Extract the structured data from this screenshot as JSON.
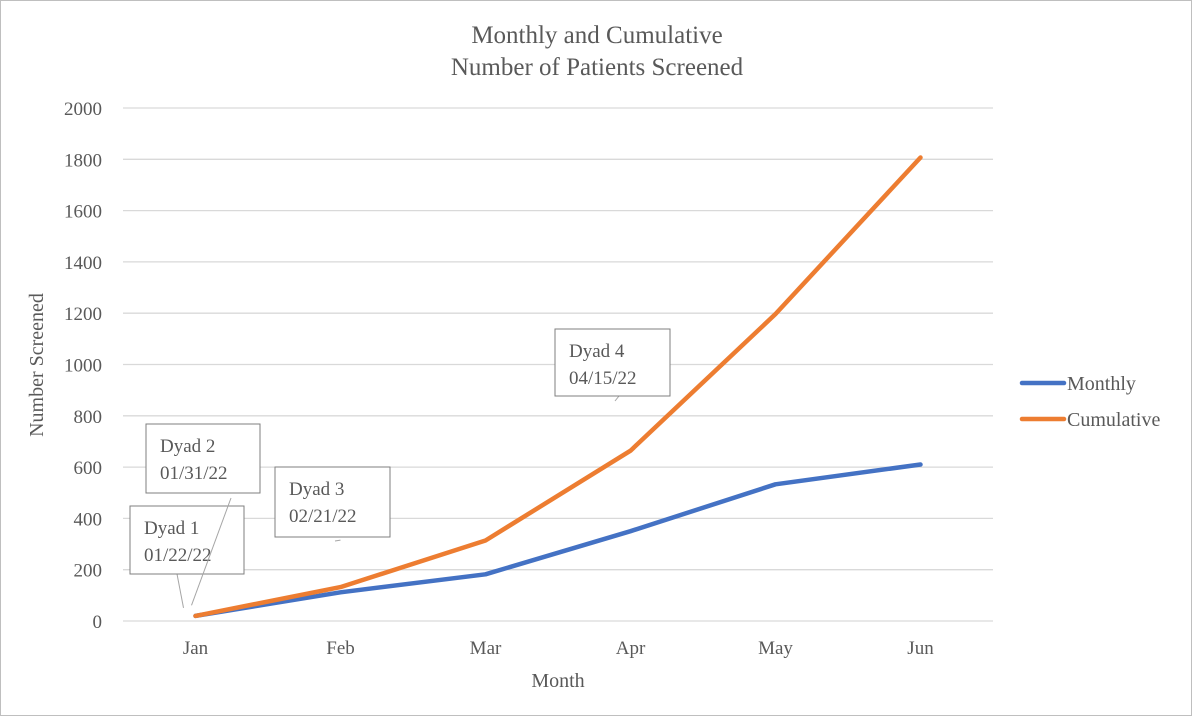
{
  "chart_data": {
    "type": "line",
    "title": [
      "Monthly and Cumulative",
      "Number of Patients Screened"
    ],
    "xlabel": "Month",
    "ylabel": "Number Screened",
    "categories": [
      "Jan",
      "Feb",
      "Mar",
      "Apr",
      "May",
      "Jun"
    ],
    "ylim": [
      0,
      2000
    ],
    "yticks": [
      0,
      200,
      400,
      600,
      800,
      1000,
      1200,
      1400,
      1600,
      1800,
      2000
    ],
    "grid": true,
    "legend_position": "right",
    "series": [
      {
        "name": "Monthly",
        "color": "#4472c4",
        "values": [
          20,
          112,
          182,
          350,
          533,
          610
        ]
      },
      {
        "name": "Cumulative",
        "color": "#ed7d31",
        "values": [
          20,
          132,
          314,
          664,
          1197,
          1807
        ]
      }
    ],
    "annotations": [
      {
        "lines": [
          "Dyad 1",
          "01/22/22"
        ],
        "category": "Jan",
        "value": 20
      },
      {
        "lines": [
          "Dyad 2",
          "01/31/22"
        ],
        "category": "Jan",
        "value": 30
      },
      {
        "lines": [
          "Dyad 3",
          "02/21/22"
        ],
        "category": "Feb",
        "value": 140
      },
      {
        "lines": [
          "Dyad 4",
          "04/15/22"
        ],
        "category": "Apr",
        "value": 680
      }
    ]
  }
}
